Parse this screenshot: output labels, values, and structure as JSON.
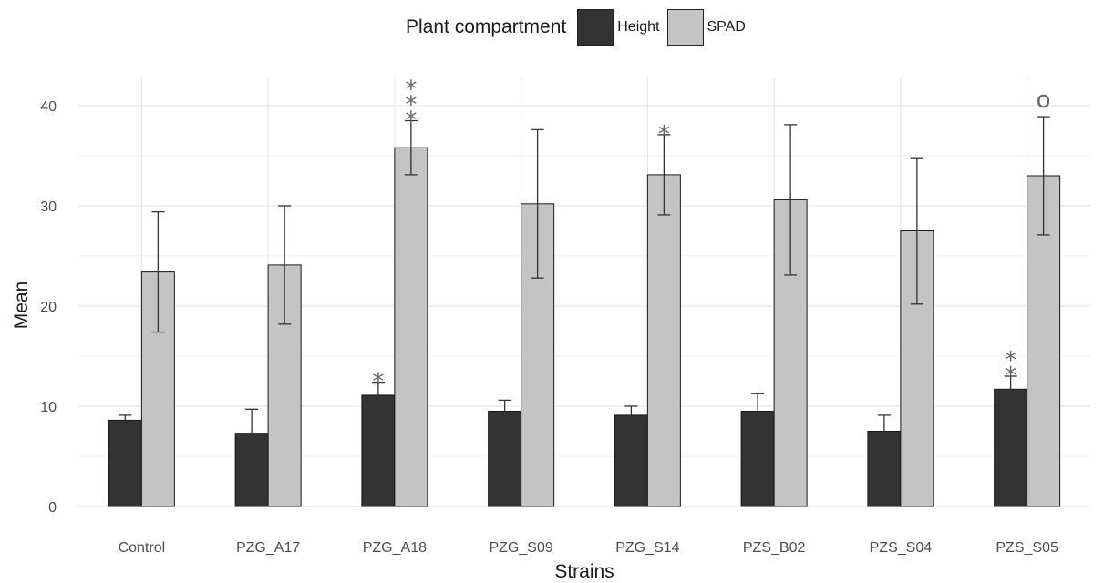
{
  "legend": {
    "title": "Plant compartment",
    "items": [
      {
        "label": "Height",
        "color": "#333333"
      },
      {
        "label": "SPAD",
        "color": "#c4c4c4"
      }
    ]
  },
  "chart_data": {
    "type": "bar",
    "xlabel": "Strains",
    "ylabel": "Mean",
    "ylim": [
      0,
      40
    ],
    "yticks": [
      0,
      10,
      20,
      30,
      40
    ],
    "grid": true,
    "legend_position": "top",
    "categories": [
      "Control",
      "PZG_A17",
      "PZG_A18",
      "PZG_S09",
      "PZG_S14",
      "PZS_B02",
      "PZS_S04",
      "PZS_S05"
    ],
    "series": [
      {
        "name": "Height",
        "color": "#333333",
        "values": [
          8.6,
          7.3,
          11.1,
          9.5,
          9.1,
          9.5,
          7.5,
          11.7
        ],
        "error": [
          0.5,
          2.4,
          1.3,
          1.1,
          0.9,
          1.8,
          1.6,
          1.3
        ],
        "significance": [
          "",
          "",
          "*",
          "",
          "",
          "",
          "",
          "**"
        ]
      },
      {
        "name": "SPAD",
        "color": "#c4c4c4",
        "values": [
          23.4,
          24.1,
          35.8,
          30.2,
          33.1,
          30.6,
          27.5,
          33.0
        ],
        "error": [
          6.0,
          5.9,
          2.7,
          7.4,
          4.0,
          7.5,
          7.3,
          5.9
        ],
        "significance": [
          "",
          "",
          "***",
          "",
          "*",
          "",
          "",
          "o"
        ]
      }
    ]
  }
}
